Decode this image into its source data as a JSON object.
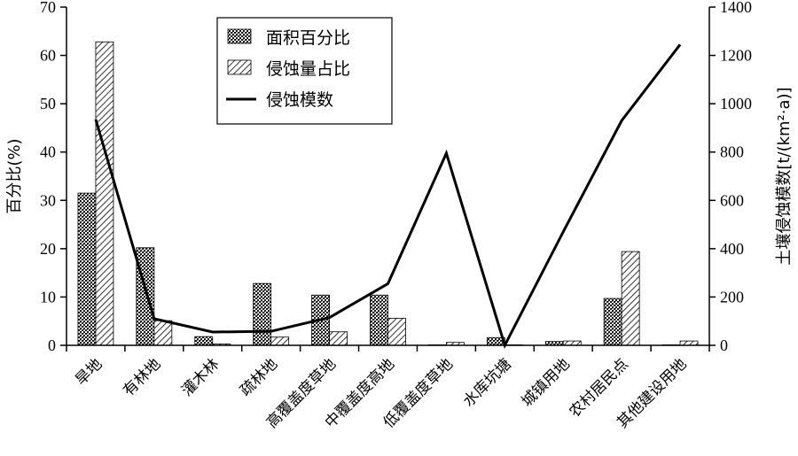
{
  "chart_data": {
    "type": "bar",
    "categories": [
      "旱地",
      "有林地",
      "灌木林",
      "疏林地",
      "高覆盖度草地",
      "中覆盖度高地",
      "低覆盖度草地",
      "水库坑塘",
      "城镇用地",
      "农村居民点",
      "其他建设用地"
    ],
    "series": [
      {
        "name": "面积百分比",
        "kind": "bar",
        "axis": "left",
        "pattern": "crosshatch",
        "values": [
          31.5,
          20.2,
          1.8,
          12.8,
          10.4,
          10.4,
          0.1,
          1.6,
          0.8,
          9.7,
          0.1
        ]
      },
      {
        "name": "侵蚀量占比",
        "kind": "bar",
        "axis": "left",
        "pattern": "diagonal",
        "values": [
          62.8,
          5.1,
          0.3,
          1.7,
          2.8,
          5.6,
          0.6,
          0.1,
          0.9,
          19.4,
          0.9
        ]
      },
      {
        "name": "侵蚀模数",
        "kind": "line",
        "axis": "right",
        "values": [
          935,
          110,
          55,
          58,
          115,
          255,
          795,
          0,
          470,
          930,
          1245
        ]
      }
    ],
    "ylabel": "百分比(%)",
    "ylabel_right": "土壤侵蚀模数[t/(km²·a)]",
    "ylim": [
      0,
      70
    ],
    "ylim_right": [
      0,
      1400
    ],
    "yticks": [
      0,
      10,
      20,
      30,
      40,
      50,
      60,
      70
    ],
    "yticks_right": [
      0,
      200,
      400,
      600,
      800,
      1000,
      1200,
      1400
    ],
    "legend_position": "top-center",
    "grid": false
  }
}
